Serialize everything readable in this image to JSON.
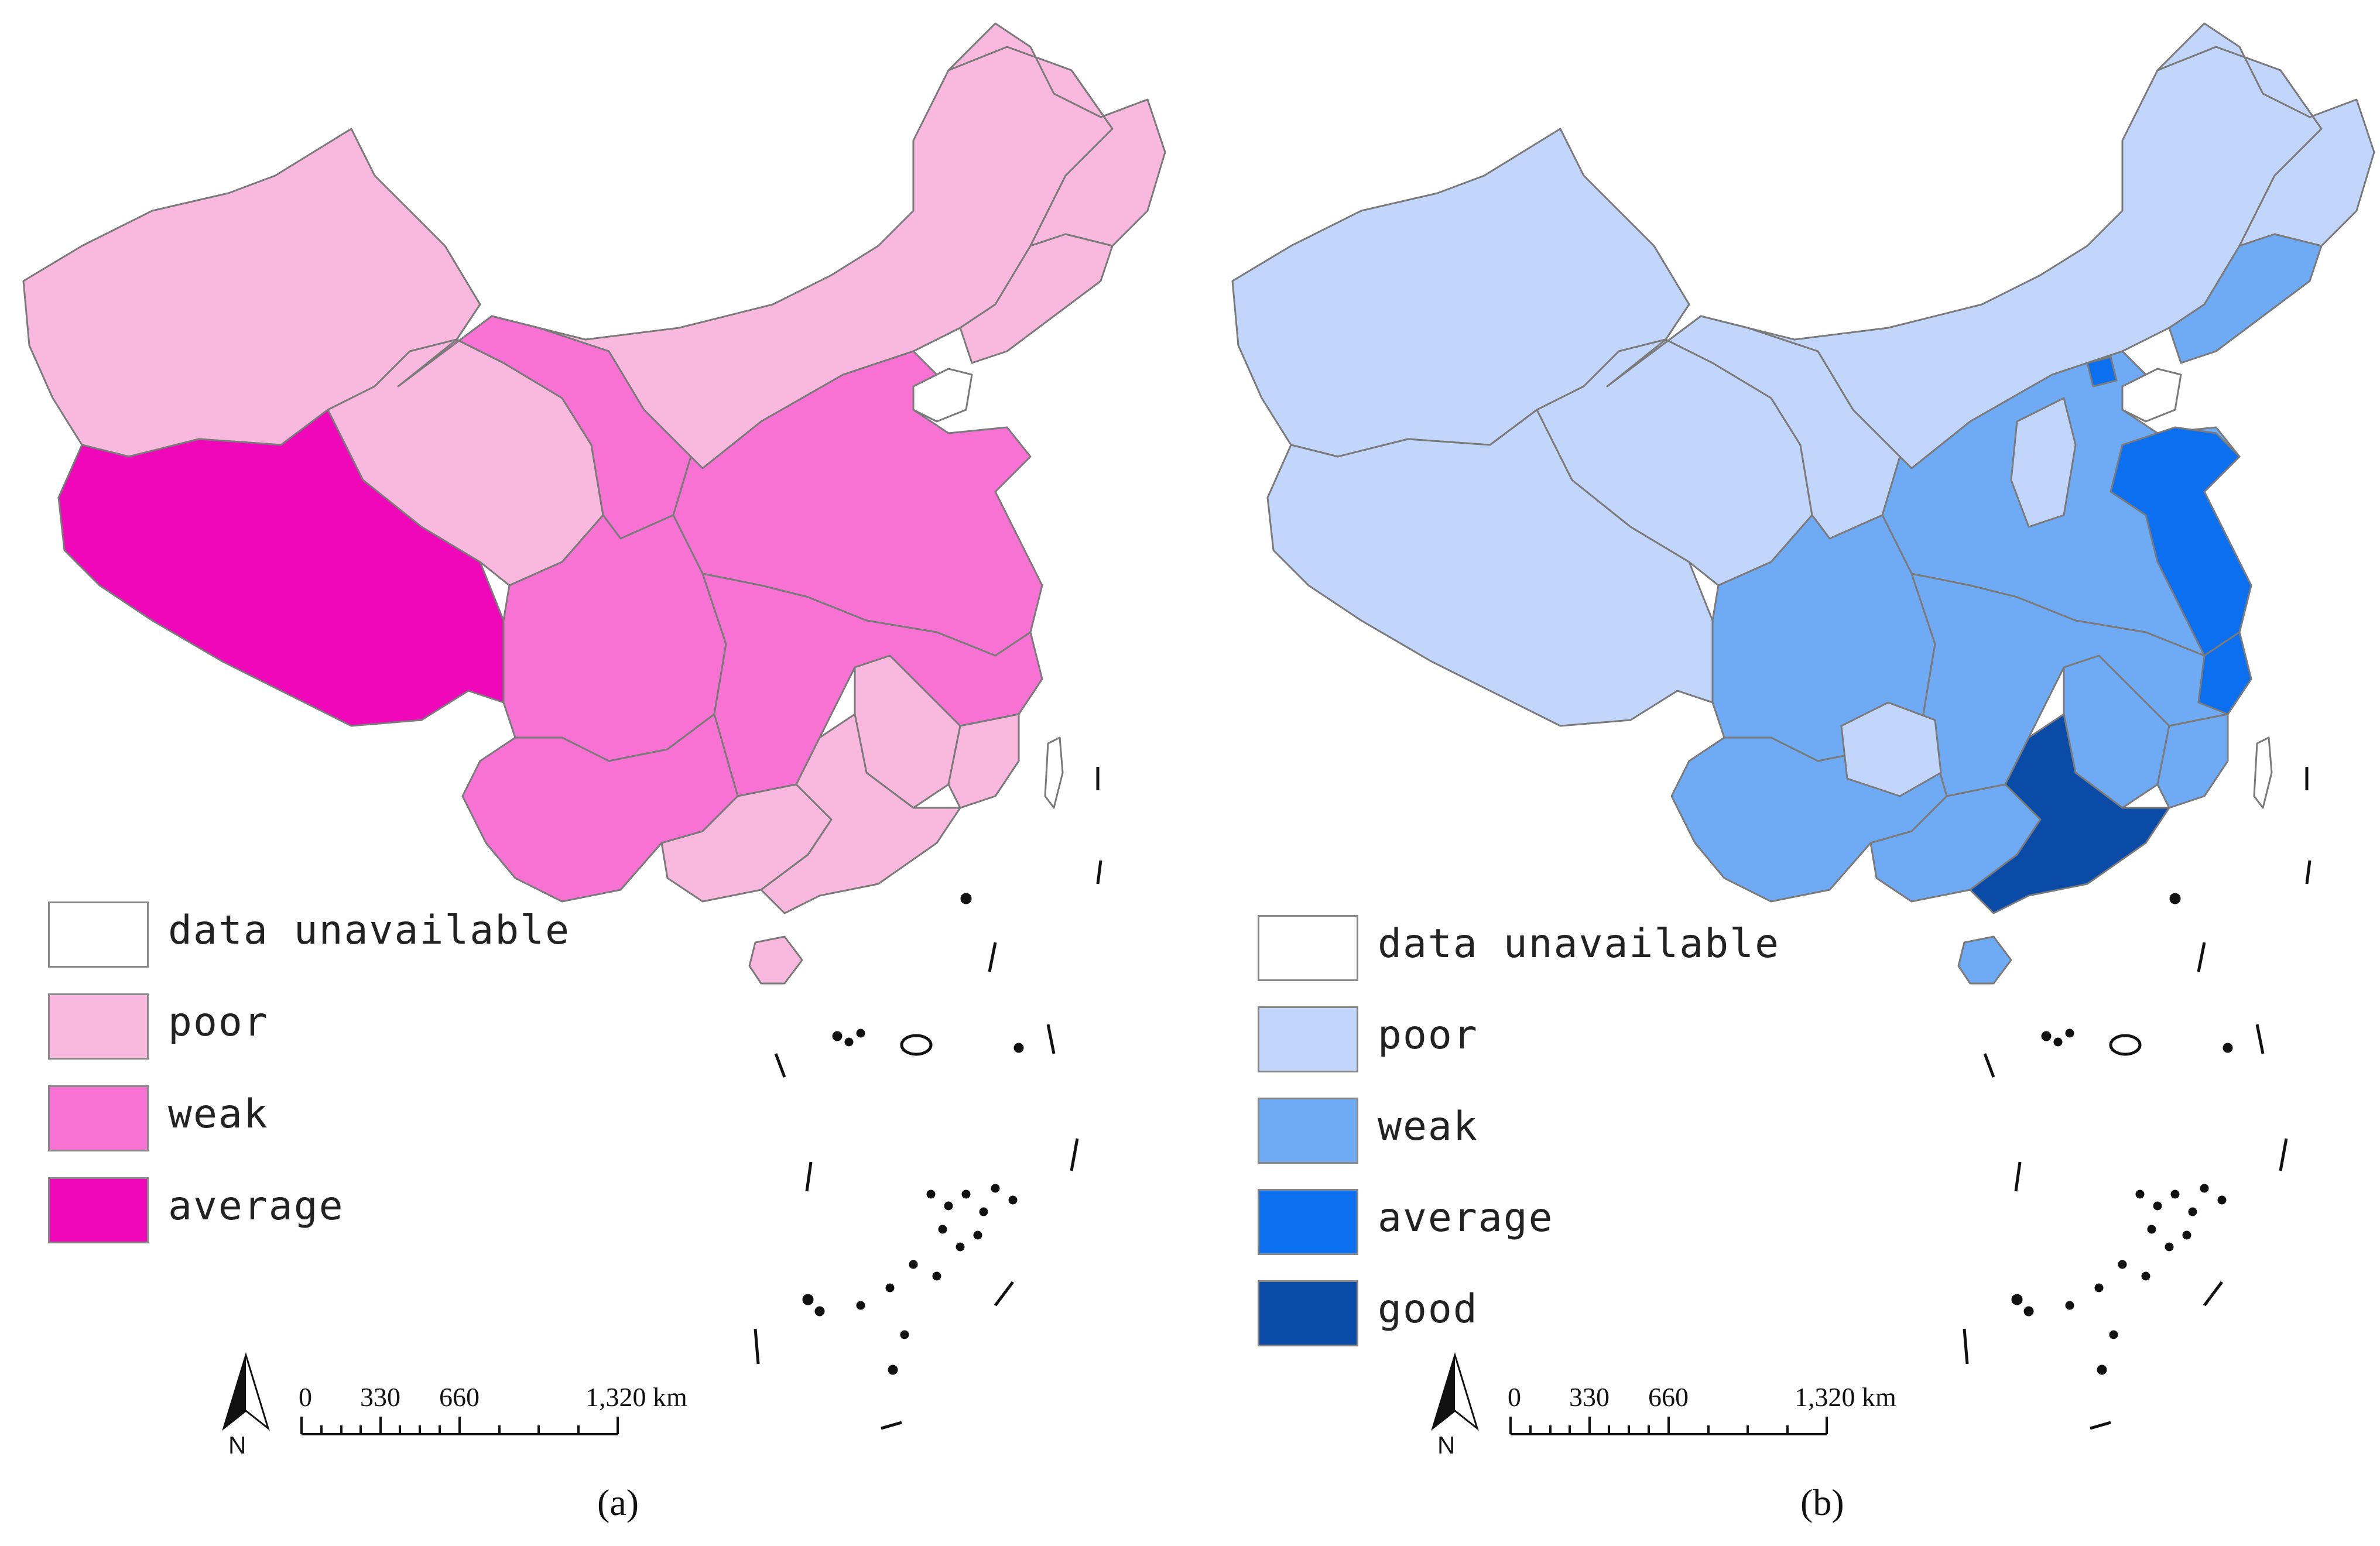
{
  "panels": [
    {
      "id": "a",
      "caption": "(a)",
      "legend": [
        {
          "label": "data unavailable",
          "color": "#ffffff"
        },
        {
          "label": "poor",
          "color": "#f9b9de"
        },
        {
          "label": "weak",
          "color": "#f872d3"
        },
        {
          "label": "average",
          "color": "#f007b9"
        }
      ],
      "scale_ticks": [
        "0",
        "330",
        "660",
        "1,320 km"
      ],
      "north": "N"
    },
    {
      "id": "b",
      "caption": "(b)",
      "legend": [
        {
          "label": "data unavailable",
          "color": "#ffffff"
        },
        {
          "label": "poor",
          "color": "#c2d5fa"
        },
        {
          "label": "weak",
          "color": "#6fabf5"
        },
        {
          "label": "average",
          "color": "#0c6ff0"
        },
        {
          "label": "good",
          "color": "#0a4ba8"
        }
      ],
      "scale_ticks": [
        "0",
        "330",
        "660",
        "1,320 km"
      ],
      "north": "N"
    }
  ]
}
